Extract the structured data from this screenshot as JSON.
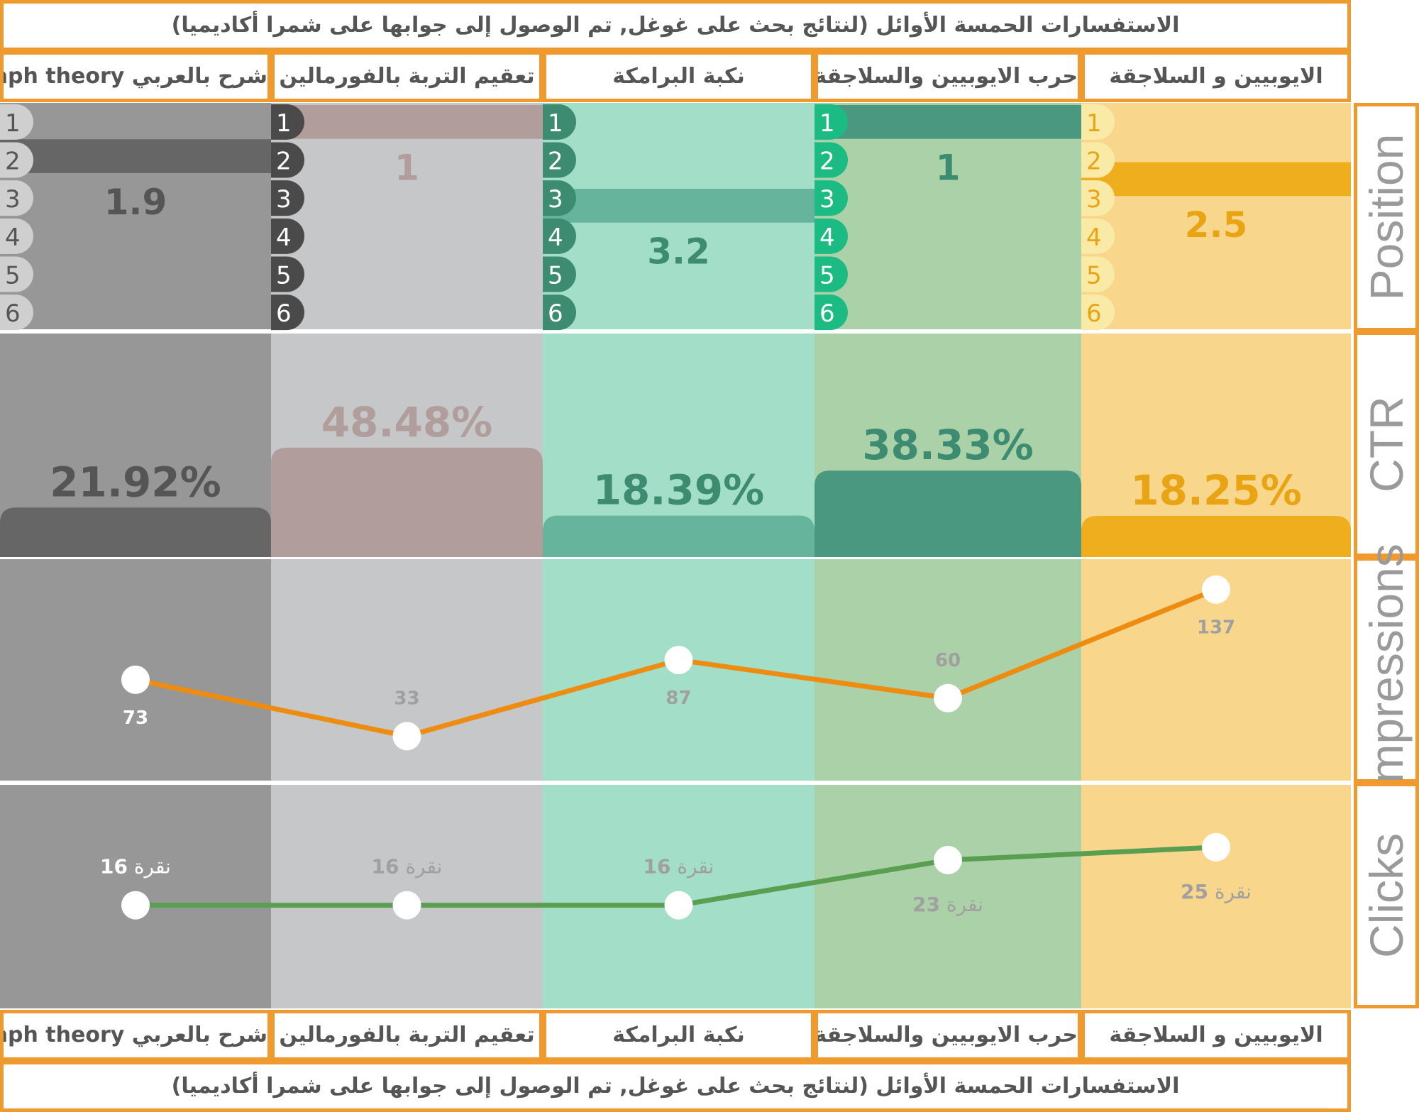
{
  "title": "الاستفسارات الحمسة الأوائل (لنتائج بحث على غوغل, تم الوصول إلى جوابها على شمرا أكاديميا)",
  "side_labels": {
    "position": "Position",
    "ctr": "CTR",
    "impressions": "Impressions",
    "clicks": "Clicks"
  },
  "rank_ticks": [
    "1",
    "2",
    "3",
    "4",
    "5",
    "6"
  ],
  "clicks_unit": "نقرة",
  "colors": {
    "border": "#ee9a2e",
    "impressions_line": "#ee8c12",
    "clicks_line": "#5a9e52",
    "columns": [
      {
        "bg": "#979797",
        "bar": "#666666",
        "pill": "#cfcfcf",
        "pill_text": "#555555",
        "text": "#555555",
        "label": "#ffffff"
      },
      {
        "bg": "#c6c7c8",
        "bar": "#b19d9c",
        "pill": "#4a4a4a",
        "pill_text": "#ffffff",
        "text": "#b19d9c",
        "label": "#a0a0a0"
      },
      {
        "bg": "#a3dfc8",
        "bar": "#67b49c",
        "pill": "#3d8c72",
        "pill_text": "#ffffff",
        "text": "#3d8c72",
        "label": "#a0a0a0"
      },
      {
        "bg": "#abd1a9",
        "bar": "#4a9880",
        "pill": "#1cbb84",
        "pill_text": "#ffffff",
        "text": "#3d8c72",
        "label": "#a0a0a0"
      },
      {
        "bg": "#f8d78d",
        "bar": "#efae1e",
        "pill": "#faeaa8",
        "pill_text": "#e8a413",
        "text": "#e8a413",
        "label": "#a0a0a0"
      }
    ]
  },
  "chart_data": {
    "type": "bar",
    "title": "الاستفسارات الحمسة الأوائل (لنتائج بحث على غوغل, تم الوصول إلى جوابها على شمرا أكاديميا)",
    "categories": [
      "شرح بالعربي graph theory",
      "تعقيم التربة بالفورمالين",
      "نكبة البرامكة",
      "حرب الايوبيين والسلاجقة",
      "الايوبيين و السلاجقة"
    ],
    "position": {
      "name": "Position",
      "values": [
        1.9,
        1,
        3.2,
        1,
        2.5
      ],
      "labels": [
        "1.9",
        "1",
        "3.2",
        "1",
        "2.5"
      ],
      "ylim": [
        1,
        6
      ]
    },
    "ctr": {
      "name": "CTR",
      "values": [
        21.92,
        48.48,
        18.39,
        38.33,
        18.25
      ],
      "labels": [
        "21.92%",
        "48.48%",
        "18.39%",
        "38.33%",
        "18.25%"
      ],
      "ylim": [
        0,
        100
      ]
    },
    "impressions": {
      "name": "Impressions",
      "type": "line",
      "values": [
        73,
        33,
        87,
        60,
        137
      ],
      "labels": [
        "73",
        "33",
        "87",
        "60",
        "137"
      ],
      "ylim": [
        0,
        160
      ]
    },
    "clicks": {
      "name": "Clicks",
      "type": "line",
      "values": [
        16,
        16,
        16,
        23,
        25
      ],
      "labels": [
        "16",
        "16",
        "16",
        "23",
        "25"
      ],
      "ylim": [
        0,
        35
      ]
    }
  }
}
